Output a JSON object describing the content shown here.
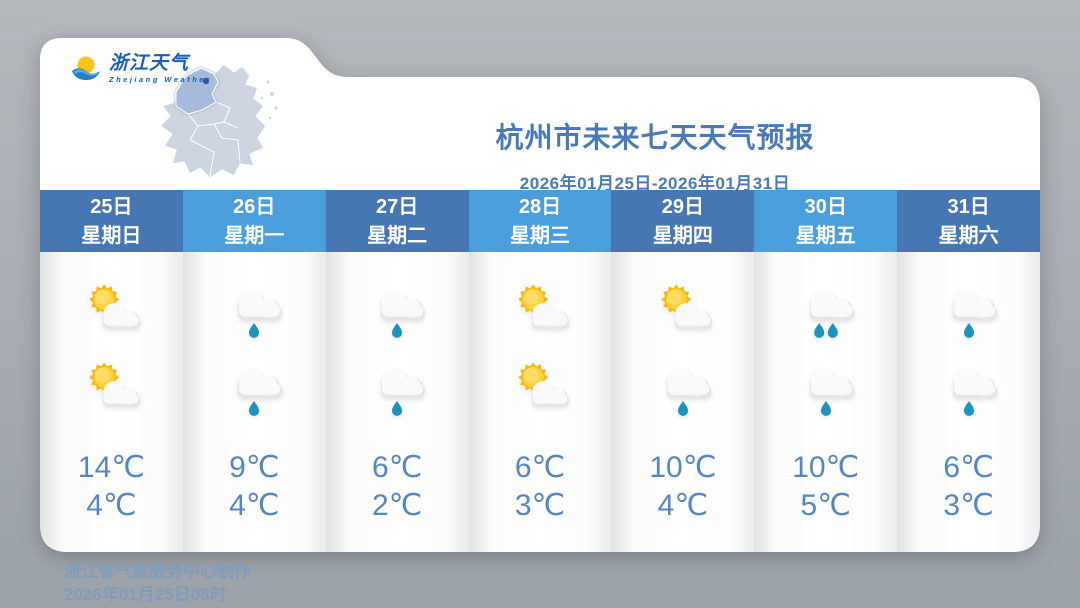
{
  "logo": {
    "title": "浙江天气",
    "subtitle": "Zhejiang Weather"
  },
  "header": {
    "title": "杭州市未来七天天气预报",
    "date_range": "2026年01月25日-2026年01月31日"
  },
  "columns": [
    {
      "date": "25日",
      "weekday": "星期日",
      "day_icon": "partly-cloudy",
      "night_icon": "partly-cloudy",
      "high": "14℃",
      "low": "4℃"
    },
    {
      "date": "26日",
      "weekday": "星期一",
      "day_icon": "rain-1",
      "night_icon": "rain-1",
      "high": "9℃",
      "low": "4℃"
    },
    {
      "date": "27日",
      "weekday": "星期二",
      "day_icon": "rain-1",
      "night_icon": "rain-1",
      "high": "6℃",
      "low": "2℃"
    },
    {
      "date": "28日",
      "weekday": "星期三",
      "day_icon": "partly-cloudy",
      "night_icon": "partly-cloudy",
      "high": "6℃",
      "low": "3℃"
    },
    {
      "date": "29日",
      "weekday": "星期四",
      "day_icon": "partly-cloudy",
      "night_icon": "rain-1",
      "high": "10℃",
      "low": "4℃"
    },
    {
      "date": "30日",
      "weekday": "星期五",
      "day_icon": "rain-2",
      "night_icon": "rain-1",
      "high": "10℃",
      "low": "5℃"
    },
    {
      "date": "31日",
      "weekday": "星期六",
      "day_icon": "rain-1",
      "night_icon": "rain-1",
      "high": "6℃",
      "low": "3℃"
    }
  ],
  "footer": {
    "line1": "浙江省气象服务中心制作",
    "line2": "2026年01月25日08时"
  },
  "colors": {
    "header_dark": "#4677b3",
    "header_light": "#4a9edb",
    "accent_text": "#4a7ab5",
    "temp_text": "#5586bf",
    "rain_drop": "#1b94be",
    "sun_yellow": "#f5b90c",
    "footer_text": "#7f9cbd"
  }
}
